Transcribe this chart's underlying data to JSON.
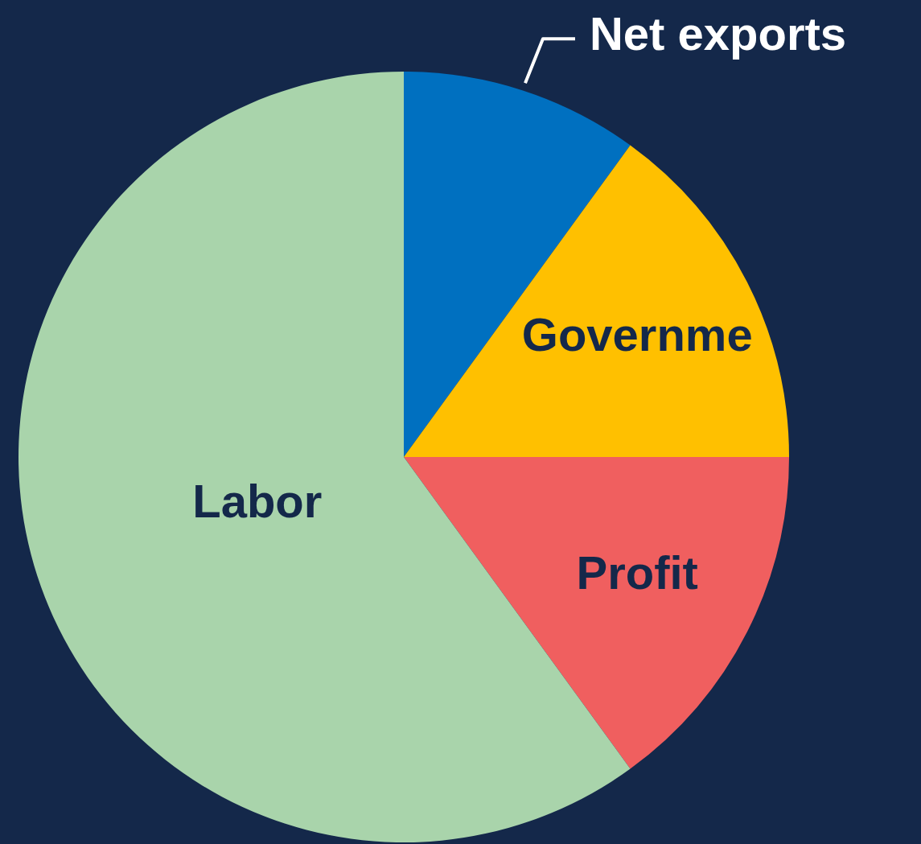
{
  "chart_data": {
    "type": "pie",
    "categories": [
      "Net exports",
      "Governme",
      "Profit",
      "Labor"
    ],
    "values": [
      10,
      15,
      15,
      60
    ],
    "colors": [
      "#0070c0",
      "#ffc000",
      "#f05f5f",
      "#a9d4ab"
    ],
    "legend": false
  }
}
